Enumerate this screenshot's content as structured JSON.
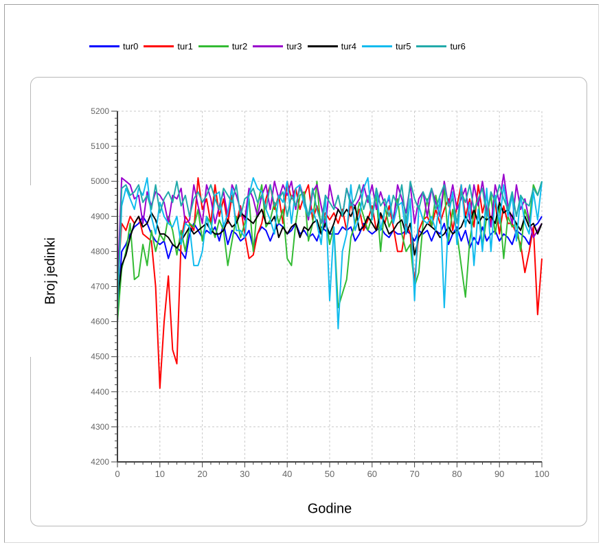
{
  "chart_data": {
    "type": "line",
    "title": "",
    "xlabel": "Godine",
    "ylabel": "Broj jedinki",
    "xlim": [
      0,
      100
    ],
    "ylim": [
      4200,
      5200
    ],
    "xticks": [
      "0",
      "10",
      "20",
      "30",
      "40",
      "50",
      "60",
      "70",
      "80",
      "90",
      "100"
    ],
    "yticks": [
      "4200",
      "4300",
      "4400",
      "4500",
      "4600",
      "4700",
      "4800",
      "4900",
      "5000",
      "5100",
      "5200"
    ],
    "grid": true,
    "legend_position": "top",
    "x": [
      0,
      1,
      2,
      3,
      4,
      5,
      6,
      7,
      8,
      9,
      10,
      11,
      12,
      13,
      14,
      15,
      16,
      17,
      18,
      19,
      20,
      21,
      22,
      23,
      24,
      25,
      26,
      27,
      28,
      29,
      30,
      31,
      32,
      33,
      34,
      35,
      36,
      37,
      38,
      39,
      40,
      41,
      42,
      43,
      44,
      45,
      46,
      47,
      48,
      49,
      50,
      51,
      52,
      53,
      54,
      55,
      56,
      57,
      58,
      59,
      60,
      61,
      62,
      63,
      64,
      65,
      66,
      67,
      68,
      69,
      70,
      71,
      72,
      73,
      74,
      75,
      76,
      77,
      78,
      79,
      80,
      81,
      82,
      83,
      84,
      85,
      86,
      87,
      88,
      89,
      90,
      91,
      92,
      93,
      94,
      95,
      96,
      97,
      98,
      99,
      100
    ],
    "series": [
      {
        "name": "tur0",
        "color": "#0000ff",
        "values": [
          4600,
          4800,
          4820,
          4850,
          4870,
          4880,
          4900,
          4880,
          4850,
          4830,
          4820,
          4830,
          4780,
          4820,
          4810,
          4800,
          4780,
          4850,
          4880,
          4860,
          4840,
          4860,
          4850,
          4870,
          4830,
          4880,
          4820,
          4860,
          4850,
          4830,
          4840,
          4860,
          4810,
          4850,
          4870,
          4860,
          4830,
          4860,
          4880,
          4870,
          4850,
          4860,
          4880,
          4850,
          4860,
          4840,
          4850,
          4830,
          4870,
          4860,
          4850,
          4850,
          4850,
          4870,
          4860,
          4870,
          4830,
          4850,
          4880,
          4860,
          4850,
          4860,
          4870,
          4850,
          4840,
          4860,
          4850,
          4850,
          4860,
          4850,
          4830,
          4860,
          4850,
          4860,
          4830,
          4860,
          4850,
          4880,
          4820,
          4850,
          4870,
          4830,
          4860,
          4810,
          4840,
          4820,
          4870,
          4830,
          4850,
          4860,
          4830,
          4850,
          4840,
          4820,
          4860,
          4850,
          4840,
          4820,
          4870,
          4880,
          4900
        ]
      },
      {
        "name": "tur1",
        "color": "#ff0000",
        "values": [
          4700,
          4880,
          4860,
          4900,
          4880,
          4900,
          4850,
          4840,
          4830,
          4700,
          4410,
          4600,
          4730,
          4520,
          4480,
          4830,
          4900,
          4880,
          4860,
          5010,
          4920,
          4950,
          4880,
          4990,
          4900,
          4950,
          4880,
          4960,
          4880,
          4930,
          4850,
          4780,
          4790,
          4850,
          4880,
          4950,
          4990,
          4920,
          4960,
          4880,
          5000,
          4950,
          4980,
          4920,
          4960,
          4990,
          4890,
          4930,
          4880,
          4910,
          4890,
          4910,
          4880,
          4920,
          4860,
          4940,
          4880,
          4920,
          4860,
          4890,
          4930,
          4860,
          4900,
          4880,
          4930,
          4870,
          4800,
          4800,
          4880,
          4850,
          4710,
          4860,
          4890,
          4900,
          4870,
          4920,
          4880,
          4920,
          4950,
          4860,
          4930,
          4990,
          4900,
          4950,
          4870,
          4990,
          4910,
          4960,
          4880,
          4940,
          4850,
          4930,
          4880,
          4880,
          4850,
          4820,
          4740,
          4800,
          4870,
          4620,
          4780
        ]
      },
      {
        "name": "tur2",
        "color": "#33bb33",
        "values": [
          4600,
          4750,
          4800,
          4880,
          4720,
          4730,
          4820,
          4760,
          4860,
          4800,
          4850,
          4830,
          4900,
          4860,
          4790,
          4860,
          4800,
          4880,
          4870,
          4920,
          4830,
          4900,
          4880,
          4840,
          4890,
          4860,
          4760,
          4830,
          4900,
          4840,
          4880,
          4950,
          4800,
          4930,
          4990,
          4870,
          4890,
          4940,
          4880,
          4920,
          4780,
          4760,
          4880,
          4960,
          4970,
          4830,
          4880,
          5000,
          4850,
          4900,
          4820,
          4870,
          4640,
          4680,
          4720,
          4840,
          4880,
          4940,
          4900,
          4860,
          4900,
          4960,
          4800,
          4930,
          4870,
          4900,
          4950,
          4850,
          4800,
          4820,
          4700,
          4740,
          4880,
          4950,
          4870,
          4960,
          4900,
          4980,
          4830,
          4920,
          4850,
          4760,
          4670,
          4830,
          4910,
          4950,
          4810,
          4900,
          4960,
          4850,
          4930,
          4780,
          4900,
          4870,
          4880,
          4800,
          4920,
          4880,
          4990,
          4960,
          5000
        ]
      },
      {
        "name": "tur3",
        "color": "#9900cc",
        "values": [
          4700,
          5010,
          5000,
          4990,
          4950,
          4960,
          4880,
          4970,
          4930,
          4970,
          4960,
          4940,
          4880,
          4960,
          4950,
          4980,
          4880,
          4890,
          4990,
          4930,
          4880,
          4990,
          4950,
          4880,
          4930,
          4970,
          4900,
          4990,
          4960,
          4920,
          4890,
          4980,
          4950,
          4900,
          4960,
          4990,
          4920,
          5000,
          4950,
          4990,
          4960,
          5000,
          4920,
          4990,
          4950,
          4890,
          4970,
          4990,
          4930,
          4870,
          4990,
          4930,
          4920,
          4900,
          4980,
          4940,
          4930,
          4950,
          4990,
          4940,
          4990,
          4920,
          4970,
          4930,
          4950,
          4880,
          4990,
          4950,
          4910,
          4990,
          4880,
          4950,
          4970,
          4900,
          4980,
          4940,
          4900,
          5000,
          4930,
          4990,
          4920,
          4950,
          4980,
          4890,
          4990,
          4930,
          5000,
          4920,
          4870,
          4990,
          4940,
          5020,
          4930,
          4880,
          4990,
          4920,
          4950,
          4890,
          4840,
          4860,
          4880
        ]
      },
      {
        "name": "tur4",
        "color": "#000000",
        "values": [
          4660,
          4760,
          4790,
          4840,
          4880,
          4900,
          4870,
          4880,
          4910,
          4890,
          4850,
          4850,
          4840,
          4820,
          4810,
          4830,
          4850,
          4870,
          4850,
          4860,
          4870,
          4880,
          4860,
          4850,
          4850,
          4860,
          4890,
          4870,
          4880,
          4910,
          4900,
          4890,
          4880,
          4900,
          4920,
          4880,
          4880,
          4900,
          4840,
          4870,
          4850,
          4870,
          4880,
          4840,
          4870,
          4860,
          4880,
          4890,
          4850,
          4880,
          4850,
          4880,
          4920,
          4900,
          4920,
          4900,
          4930,
          4860,
          4870,
          4900,
          4880,
          4860,
          4910,
          4880,
          4850,
          4860,
          4880,
          4890,
          4850,
          4880,
          4790,
          4840,
          4860,
          4880,
          4870,
          4860,
          4840,
          4850,
          4870,
          4850,
          4860,
          4870,
          4900,
          4880,
          4920,
          4880,
          4900,
          4890,
          4900,
          4880,
          4940,
          4910,
          4920,
          4900,
          4880,
          4860,
          4900,
          4870,
          4880,
          4850,
          4880
        ]
      },
      {
        "name": "tur5",
        "color": "#11bbee",
        "values": [
          4640,
          4930,
          4980,
          4950,
          4920,
          4980,
          4960,
          5010,
          4900,
          4850,
          4940,
          4900,
          4880,
          4870,
          4900,
          4820,
          4880,
          4870,
          4760,
          4760,
          4800,
          4900,
          4850,
          4960,
          4970,
          4870,
          4910,
          4980,
          4860,
          4860,
          4840,
          4960,
          5010,
          4980,
          4970,
          4920,
          4890,
          4850,
          4960,
          4940,
          5000,
          4880,
          4980,
          4990,
          4930,
          4900,
          4920,
          4880,
          4820,
          4960,
          4660,
          4870,
          4580,
          4800,
          4850,
          4990,
          4860,
          4900,
          4980,
          5010,
          4890,
          4980,
          4860,
          4920,
          4960,
          4880,
          4930,
          4940,
          4850,
          4950,
          4660,
          4930,
          4890,
          4880,
          4900,
          4860,
          4950,
          4640,
          4900,
          4970,
          4820,
          4990,
          4870,
          4940,
          4760,
          4920,
          4800,
          4980,
          4800,
          4960,
          4880,
          4990,
          4900,
          4960,
          4830,
          4960,
          4880,
          4850,
          4970,
          4890,
          5000
        ]
      },
      {
        "name": "tur6",
        "color": "#22aaaa",
        "values": [
          4620,
          4980,
          4990,
          4960,
          4970,
          4990,
          4940,
          4960,
          4920,
          4990,
          4910,
          4950,
          4970,
          4940,
          5000,
          4930,
          4960,
          4900,
          4950,
          4970,
          4940,
          4960,
          4990,
          4950,
          4920,
          4980,
          4960,
          4940,
          4990,
          4900,
          4950,
          4960,
          4980,
          4940,
          4960,
          4920,
          4990,
          4930,
          4950,
          4970,
          4900,
          4960,
          4930,
          4980,
          4950,
          4900,
          4980,
          4920,
          4880,
          4960,
          4940,
          4920,
          4960,
          4900,
          4980,
          4930,
          4950,
          4990,
          4920,
          4960,
          4900,
          4980,
          4930,
          4950,
          4900,
          4960,
          4930,
          4990,
          4880,
          5000,
          4950,
          4920,
          4970,
          4940,
          4980,
          4920,
          4960,
          4990,
          4930,
          4950,
          4880,
          4970,
          4940,
          4990,
          4920,
          4950,
          4980,
          4900,
          4970,
          4940,
          4990,
          4950,
          4920,
          4970,
          4900,
          4960,
          4940,
          4930,
          4980,
          4960,
          5000
        ]
      }
    ]
  }
}
